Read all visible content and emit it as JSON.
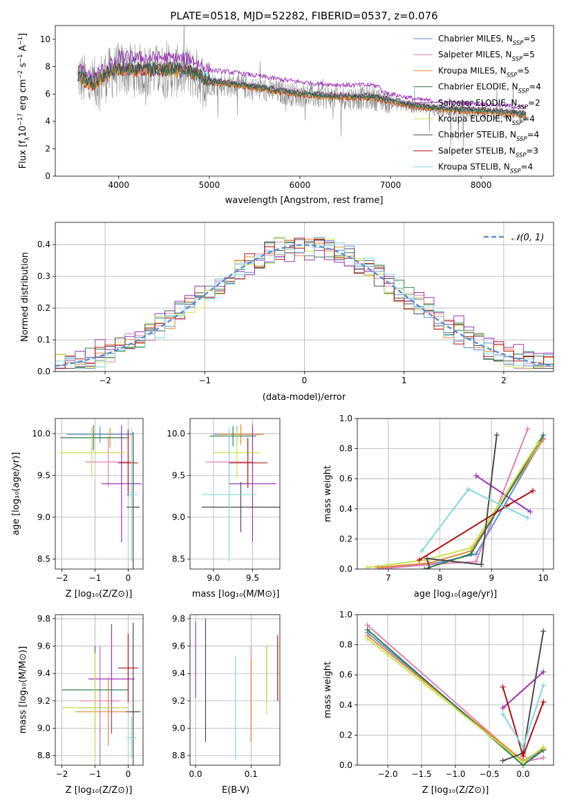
{
  "colors": {
    "chabrier_miles": "#5b8fd6",
    "salpeter_miles": "#e07fb8",
    "kroupa_miles": "#e8872a",
    "chabrier_elodie": "#2e7d4f",
    "salpeter_elodie": "#9b30b8",
    "kroupa_elodie": "#c8e04a",
    "chabrier_stelib": "#4a4a4a",
    "salpeter_stelib": "#b01010",
    "kroupa_stelib": "#7fd8dc",
    "data": "#888888",
    "normal": "#5b8fd6"
  },
  "chart_data": [
    {
      "id": "spectrum",
      "type": "line",
      "title": "PLATE=0518, MJD=52282, FIBERID=0537, z=0.076",
      "xlabel": "wavelength [Angstrom, rest frame]",
      "ylabel": "Flux [f_λ 10^-17 erg cm^-2 s^-1 A^-1]",
      "xlim": [
        3300,
        8800
      ],
      "ylim": [
        0,
        11
      ],
      "xticks": [
        4000,
        5000,
        6000,
        7000,
        8000
      ],
      "yticks": [
        0,
        2,
        4,
        6,
        8,
        10
      ],
      "legend_position": "top-right",
      "legend": [
        {
          "label": "Chabrier MILES, N_SSP=5",
          "color_key": "chabrier_miles"
        },
        {
          "label": "Salpeter MILES, N_SSP=5",
          "color_key": "salpeter_miles"
        },
        {
          "label": "Kroupa MILES, N_SSP=5",
          "color_key": "kroupa_miles"
        },
        {
          "label": "Chabrier ELODIE, N_SSP=4",
          "color_key": "chabrier_elodie"
        },
        {
          "label": "Salpeter ELODIE, N_SSP=2",
          "color_key": "salpeter_elodie"
        },
        {
          "label": "Kroupa ELODIE, N_SSP=4",
          "color_key": "kroupa_elodie"
        },
        {
          "label": "Chabrier STELIB, N_SSP=4",
          "color_key": "chabrier_stelib"
        },
        {
          "label": "Salpeter STELIB, N_SSP=3",
          "color_key": "salpeter_stelib"
        },
        {
          "label": "Kroupa STELIB, N_SSP=4",
          "color_key": "kroupa_stelib"
        }
      ],
      "continuum": {
        "x": [
          3550,
          3700,
          3850,
          4000,
          4200,
          4500,
          4800,
          5000,
          5300,
          5600,
          5900,
          6200,
          6500,
          6800,
          7000,
          7300,
          7600,
          7900,
          8200,
          8500
        ],
        "y": [
          7.3,
          6.6,
          7.3,
          7.8,
          7.7,
          7.7,
          7.6,
          6.8,
          6.6,
          6.3,
          6.0,
          5.8,
          5.7,
          5.7,
          5.4,
          5.0,
          4.8,
          4.7,
          4.6,
          4.4
        ]
      }
    },
    {
      "id": "residuals",
      "type": "line",
      "xlabel": "(data-model)/error",
      "ylabel": "Normed distribution",
      "xlim": [
        -2.5,
        2.5
      ],
      "ylim": [
        0,
        0.47
      ],
      "xticks": [
        -2,
        -1,
        0,
        1,
        2
      ],
      "yticks": [
        0.0,
        0.1,
        0.2,
        0.3,
        0.4
      ],
      "legend": [
        {
          "label": "𝒩(0, 1)",
          "color_key": "normal"
        }
      ],
      "legend_position": "top-right",
      "normal": {
        "mu": 0,
        "sigma": 1
      }
    },
    {
      "id": "age_vs_z",
      "type": "scatter",
      "xlabel": "Z [log10(Z/Z⊙)]",
      "ylabel": "age [log10(age/yr)]",
      "xlim": [
        -2.2,
        0.45
      ],
      "ylim": [
        8.38,
        10.18
      ],
      "xticks": [
        -2,
        -1,
        0
      ],
      "yticks": [
        8.5,
        9.0,
        9.5,
        10.0
      ],
      "points": [
        {
          "k": "chabrier_miles",
          "x": -0.85,
          "xerr": 1.0,
          "y": 9.99,
          "yerr": 0.1
        },
        {
          "k": "salpeter_miles",
          "x": -0.6,
          "xerr": 0.7,
          "y": 9.66,
          "yerr": 0.3
        },
        {
          "k": "kroupa_miles",
          "x": -0.55,
          "xerr": 0.6,
          "y": 9.95,
          "yerr": 0.12
        },
        {
          "k": "chabrier_elodie",
          "x": -1.05,
          "xerr": 1.0,
          "y": 9.95,
          "yerr": 0.15
        },
        {
          "k": "salpeter_elodie",
          "x": -0.2,
          "xerr": 0.6,
          "y": 9.4,
          "yerr": 0.7
        },
        {
          "k": "kroupa_elodie",
          "x": -1.1,
          "xerr": 1.0,
          "y": 9.77,
          "yerr": 0.3
        },
        {
          "k": "chabrier_stelib",
          "x": 0.15,
          "xerr": 0.2,
          "y": 9.12,
          "yerr": 0.9
        },
        {
          "k": "salpeter_stelib",
          "x": 0.0,
          "xerr": 0.3,
          "y": 9.65,
          "yerr": 0.4
        },
        {
          "k": "kroupa_stelib",
          "x": 0.1,
          "xerr": 0.2,
          "y": 9.27,
          "yerr": 0.8
        }
      ]
    },
    {
      "id": "age_vs_mass",
      "type": "scatter",
      "xlabel": "mass [log10(M/M⊙)]",
      "ylabel": "",
      "xlim": [
        8.7,
        9.85
      ],
      "ylim": [
        8.38,
        10.18
      ],
      "xticks": [
        9.0,
        9.5
      ],
      "yticks": [
        8.5,
        9.0,
        9.5,
        10.0
      ],
      "points": [
        {
          "k": "chabrier_miles",
          "x": 9.3,
          "xerr": 0.3,
          "y": 9.99,
          "yerr": 0.1
        },
        {
          "k": "salpeter_miles",
          "x": 9.2,
          "xerr": 0.3,
          "y": 9.66,
          "yerr": 0.3
        },
        {
          "k": "kroupa_miles",
          "x": 9.35,
          "xerr": 0.3,
          "y": 9.99,
          "yerr": 0.12
        },
        {
          "k": "chabrier_elodie",
          "x": 9.25,
          "xerr": 0.3,
          "y": 9.97,
          "yerr": 0.12
        },
        {
          "k": "salpeter_elodie",
          "x": 9.5,
          "xerr": 0.3,
          "y": 9.4,
          "yerr": 0.7
        },
        {
          "k": "kroupa_elodie",
          "x": 9.3,
          "xerr": 0.3,
          "y": 9.77,
          "yerr": 0.3
        },
        {
          "k": "chabrier_stelib",
          "x": 9.35,
          "xerr": 0.5,
          "y": 9.12,
          "yerr": 0.3
        },
        {
          "k": "salpeter_stelib",
          "x": 9.44,
          "xerr": 0.25,
          "y": 9.65,
          "yerr": 0.3
        },
        {
          "k": "kroupa_stelib",
          "x": 9.2,
          "xerr": 0.35,
          "y": 9.27,
          "yerr": 0.8
        }
      ]
    },
    {
      "id": "mass_weight_vs_age",
      "type": "line",
      "xlabel": "age  [log10(age/yr)]",
      "ylabel": "mass weight",
      "xlim": [
        6.4,
        10.2
      ],
      "ylim": [
        0,
        1.0
      ],
      "xticks": [
        7,
        8,
        9,
        10
      ],
      "yticks": [
        0.0,
        0.2,
        0.4,
        0.6,
        0.8,
        1.0
      ],
      "series": [
        {
          "k": "chabrier_miles",
          "x": [
            6.8,
            7.8,
            8.7,
            10.0
          ],
          "y": [
            0.01,
            0.03,
            0.1,
            0.87
          ]
        },
        {
          "k": "salpeter_miles",
          "x": [
            6.8,
            7.8,
            8.7,
            9.7
          ],
          "y": [
            0.0,
            0.03,
            0.05,
            0.93
          ]
        },
        {
          "k": "kroupa_miles",
          "x": [
            6.8,
            7.8,
            8.6,
            10.0
          ],
          "y": [
            0.01,
            0.04,
            0.12,
            0.86
          ]
        },
        {
          "k": "chabrier_elodie",
          "x": [
            7.7,
            8.6,
            10.0
          ],
          "y": [
            0.0,
            0.1,
            0.89
          ]
        },
        {
          "k": "salpeter_elodie",
          "x": [
            8.7,
            9.75
          ],
          "y": [
            0.62,
            0.38
          ]
        },
        {
          "k": "kroupa_elodie",
          "x": [
            6.6,
            7.7,
            8.6,
            9.9
          ],
          "y": [
            0.01,
            0.06,
            0.14,
            0.84
          ]
        },
        {
          "k": "chabrier_stelib",
          "x": [
            7.8,
            7.75,
            8.8,
            9.1
          ],
          "y": [
            0.0,
            0.07,
            0.03,
            0.89
          ]
        },
        {
          "k": "salpeter_stelib",
          "x": [
            7.6,
            9.3,
            9.8
          ],
          "y": [
            0.06,
            0.42,
            0.52
          ]
        },
        {
          "k": "kroupa_stelib",
          "x": [
            7.65,
            8.55,
            9.7
          ],
          "y": [
            0.12,
            0.53,
            0.34
          ]
        }
      ]
    },
    {
      "id": "mass_vs_z",
      "type": "scatter",
      "xlabel": "Z [log10(Z/Z⊙)]",
      "ylabel": "mass [log10(M/M⊙)]",
      "xlim": [
        -2.2,
        0.45
      ],
      "ylim": [
        8.73,
        9.83
      ],
      "xticks": [
        -2,
        -1,
        0
      ],
      "yticks": [
        8.8,
        9.0,
        9.2,
        9.4,
        9.6,
        9.8
      ],
      "points": [
        {
          "k": "chabrier_miles",
          "x": -0.85,
          "xerr": 0.6,
          "y": 9.15,
          "yerr": 0.45
        },
        {
          "k": "salpeter_miles",
          "x": -0.85,
          "xerr": 0.6,
          "y": 9.2,
          "yerr": 0.4
        },
        {
          "k": "kroupa_miles",
          "x": -0.6,
          "xerr": 1.0,
          "y": 9.12,
          "yerr": 0.25
        },
        {
          "k": "chabrier_elodie",
          "x": -1.0,
          "xerr": 1.0,
          "y": 9.28,
          "yerr": 0.32
        },
        {
          "k": "salpeter_elodie",
          "x": -0.5,
          "xerr": 0.7,
          "y": 9.36,
          "yerr": 0.4
        },
        {
          "k": "kroupa_elodie",
          "x": -1.0,
          "xerr": 1.0,
          "y": 9.15,
          "yerr": 0.4
        },
        {
          "k": "chabrier_stelib",
          "x": 0.15,
          "xerr": 0.2,
          "y": 9.12,
          "yerr": 0.65
        },
        {
          "k": "salpeter_stelib",
          "x": 0.0,
          "xerr": 0.3,
          "y": 9.44,
          "yerr": 0.25
        },
        {
          "k": "kroupa_stelib",
          "x": 0.1,
          "xerr": 0.15,
          "y": 8.93,
          "yerr": 0.15
        }
      ]
    },
    {
      "id": "mass_vs_ebv",
      "type": "scatter",
      "xlabel": "E(B-V)",
      "ylabel": "",
      "xlim": [
        -0.01,
        0.152
      ],
      "ylim": [
        8.73,
        9.83
      ],
      "xticks": [
        0.0,
        0.1
      ],
      "yticks": [
        8.8,
        9.0,
        9.2,
        9.4,
        9.6,
        9.8
      ],
      "points": [
        {
          "k": "salpeter_elodie",
          "x": 0.0,
          "y": 9.5,
          "yerr": 0.28
        },
        {
          "k": "chabrier_stelib",
          "x": 0.018,
          "y": 9.35,
          "yerr": 0.45
        },
        {
          "k": "kroupa_stelib",
          "x": 0.072,
          "y": 9.15,
          "yerr": 0.38
        },
        {
          "k": "salpeter_miles",
          "x": 0.1,
          "y": 9.25,
          "yerr": 0.35
        },
        {
          "k": "kroupa_miles",
          "x": 0.1,
          "y": 9.2,
          "yerr": 0.3
        },
        {
          "k": "chabrier_elodie",
          "x": 0.128,
          "y": 9.4,
          "yerr": 0.2
        },
        {
          "k": "kroupa_elodie",
          "x": 0.128,
          "y": 9.35,
          "yerr": 0.25
        },
        {
          "k": "salpeter_stelib",
          "x": 0.148,
          "y": 9.44,
          "yerr": 0.24
        }
      ]
    },
    {
      "id": "mass_weight_vs_z",
      "type": "line",
      "xlabel": "Z [log10(Z/Z⊙)]",
      "ylabel": "mass weight",
      "xlim": [
        -2.45,
        0.45
      ],
      "ylim": [
        0,
        1.0
      ],
      "xticks": [
        -2.0,
        -1.5,
        -1.0,
        -0.5,
        0.0
      ],
      "yticks": [
        0.0,
        0.2,
        0.4,
        0.6,
        0.8,
        1.0
      ],
      "series": [
        {
          "k": "chabrier_miles",
          "x": [
            -2.3,
            0.0,
            0.3
          ],
          "y": [
            0.88,
            0.02,
            0.1
          ]
        },
        {
          "k": "salpeter_miles",
          "x": [
            -2.3,
            0.0,
            0.3
          ],
          "y": [
            0.93,
            0.02,
            0.05
          ]
        },
        {
          "k": "kroupa_miles",
          "x": [
            -2.3,
            0.0,
            0.3
          ],
          "y": [
            0.86,
            0.03,
            0.11
          ]
        },
        {
          "k": "chabrier_elodie",
          "x": [
            -2.3,
            0.0,
            0.3
          ],
          "y": [
            0.9,
            0.0,
            0.1
          ]
        },
        {
          "k": "salpeter_elodie",
          "x": [
            -0.3,
            0.3
          ],
          "y": [
            0.38,
            0.62
          ]
        },
        {
          "k": "kroupa_elodie",
          "x": [
            -2.3,
            0.0,
            0.3
          ],
          "y": [
            0.84,
            0.02,
            0.12
          ]
        },
        {
          "k": "chabrier_stelib",
          "x": [
            -0.3,
            0.0,
            0.3
          ],
          "y": [
            0.03,
            0.08,
            0.89
          ]
        },
        {
          "k": "salpeter_stelib",
          "x": [
            -0.3,
            0.0,
            0.3
          ],
          "y": [
            0.52,
            0.06,
            0.42
          ]
        },
        {
          "k": "kroupa_stelib",
          "x": [
            -0.3,
            0.0,
            0.3
          ],
          "y": [
            0.34,
            0.12,
            0.53
          ]
        }
      ]
    }
  ]
}
